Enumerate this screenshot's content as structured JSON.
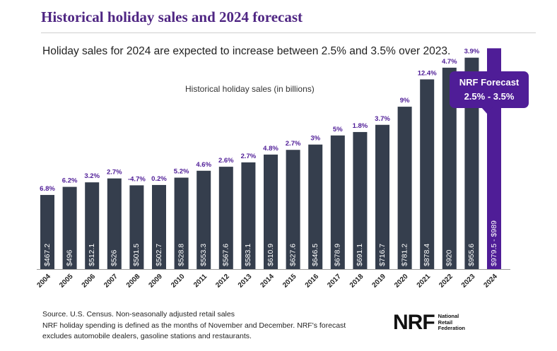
{
  "header": {
    "title": "Historical holiday sales and 2024 forecast",
    "subtitle": "Holiday sales for 2024 are expected to increase between 2.5% and 3.5% over 2023."
  },
  "colors": {
    "historical_bar": "#353e4d",
    "forecast_bar": "#4f1d97",
    "growth_label": "#4f1d97",
    "title": "#4f2683"
  },
  "chart_data": {
    "type": "bar",
    "title": "Historical holiday sales (in billions)",
    "xlabel": "",
    "ylabel": "",
    "ylim": [
      0,
      1000
    ],
    "grid": false,
    "categories": [
      "2004",
      "2005",
      "2006",
      "2007",
      "2008",
      "2009",
      "2010",
      "2011",
      "2012",
      "2013",
      "2014",
      "2015",
      "2016",
      "2017",
      "2018",
      "2019",
      "2020",
      "2021",
      "2022",
      "2023",
      "2024"
    ],
    "values": [
      467.2,
      496,
      512.1,
      526,
      501.5,
      502.7,
      528.8,
      553.3,
      567.6,
      583.1,
      610.9,
      627.6,
      646.5,
      678.9,
      691.1,
      716.7,
      781.2,
      878.4,
      920,
      955.6,
      989
    ],
    "value_labels": [
      "$467.2",
      "$496",
      "$512.1",
      "$526",
      "$501.5",
      "$502.7",
      "$528.8",
      "$553.3",
      "$567.6",
      "$583.1",
      "$610.9",
      "$627.6",
      "$646.5",
      "$678.9",
      "$691.1",
      "$716.7",
      "$781.2",
      "$878.4",
      "$920",
      "$955.6",
      "$979.5 - $989"
    ],
    "growth_labels": [
      "6.8%",
      "6.2%",
      "3.2%",
      "2.7%",
      "-4.7%",
      "0.2%",
      "5.2%",
      "4.6%",
      "2.6%",
      "2.7%",
      "4.8%",
      "2.7%",
      "3%",
      "5%",
      "1.8%",
      "3.7%",
      "9%",
      "12.4%",
      "4.7%",
      "3.9%",
      ""
    ],
    "forecast_index": 20
  },
  "callout": {
    "line1": "NRF Forecast",
    "line2": "2.5% - 3.5%"
  },
  "footer": {
    "source": "Source. U.S. Census. Non-seasonally adjusted retail sales",
    "note1": "NRF holiday spending is defined as the months of November and December. NRF's forecast",
    "note2": "excludes automobile dealers, gasoline stations and restaurants."
  },
  "logo": {
    "mark": "NRF",
    "line1": "National",
    "line2": "Retail",
    "line3": "Federation"
  }
}
